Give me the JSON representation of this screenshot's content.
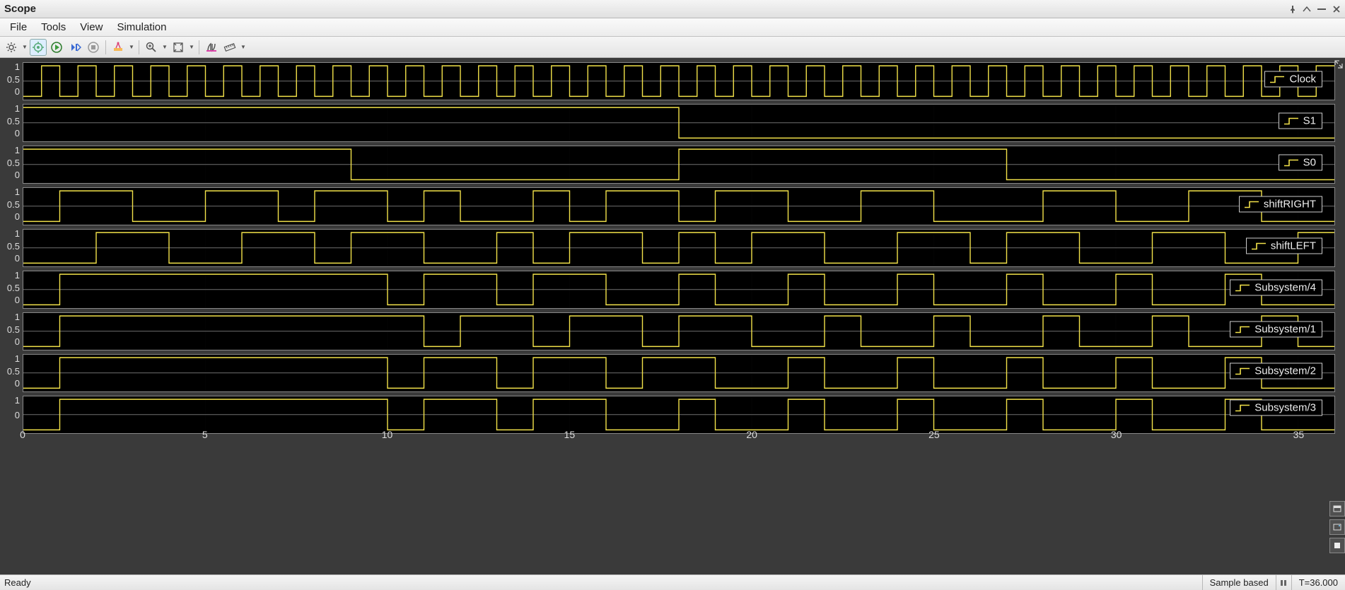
{
  "window": {
    "title": "Scope"
  },
  "menu": {
    "items": [
      "File",
      "Tools",
      "View",
      "Simulation"
    ]
  },
  "toolbar": {
    "buttons": [
      {
        "name": "config-button",
        "icon": "gear",
        "dd": true
      },
      {
        "name": "scope-params-button",
        "icon": "gear-scope",
        "active": true
      },
      {
        "name": "run-button",
        "icon": "play"
      },
      {
        "name": "step-button",
        "icon": "step"
      },
      {
        "name": "stop-button",
        "icon": "stop"
      },
      {
        "name": "highlight-button",
        "icon": "highlight",
        "dd": true,
        "sep_before": true
      },
      {
        "name": "zoom-button",
        "icon": "zoom",
        "dd": true,
        "sep_before": true
      },
      {
        "name": "autoscale-button",
        "icon": "autoscale",
        "dd": true
      },
      {
        "name": "cursors-button",
        "icon": "cursor",
        "sep_before": true
      },
      {
        "name": "measure-button",
        "icon": "ruler",
        "dd": true
      }
    ]
  },
  "plot": {
    "bg": "#000000",
    "area_bg": "#3a3a3a",
    "line_color": "#f2e24a",
    "grid_color": "#707070",
    "axis_color": "#888888",
    "text_color": "#dddddd",
    "x_min": 0,
    "x_max": 36,
    "x_ticks": [
      0,
      5,
      10,
      15,
      20,
      25,
      30,
      35
    ],
    "x_grid": [
      5,
      10,
      15,
      20,
      25,
      30,
      35
    ],
    "y_ticks": [
      "1",
      "0.5",
      "0"
    ],
    "subplots": [
      {
        "label": "Clock",
        "edges": [
          0,
          0.5,
          1,
          1.5,
          2,
          2.5,
          3,
          3.5,
          4,
          4.5,
          5,
          5.5,
          6,
          6.5,
          7,
          7.5,
          8,
          8.5,
          9,
          9.5,
          10,
          10.5,
          11,
          11.5,
          12,
          12.5,
          13,
          13.5,
          14,
          14.5,
          15,
          15.5,
          16,
          16.5,
          17,
          17.5,
          18,
          18.5,
          19,
          19.5,
          20,
          20.5,
          21,
          21.5,
          22,
          22.5,
          23,
          23.5,
          24,
          24.5,
          25,
          25.5,
          26,
          26.5,
          27,
          27.5,
          28,
          28.5,
          29,
          29.5,
          30,
          30.5,
          31,
          31.5,
          32,
          32.5,
          33,
          33.5,
          34,
          34.5,
          35,
          35.5,
          36
        ],
        "start": 0
      },
      {
        "label": "S1",
        "edges": [
          0,
          18,
          36
        ],
        "start": 1
      },
      {
        "label": "S0",
        "edges": [
          0,
          9,
          18,
          27,
          36
        ],
        "start": 1
      },
      {
        "label": "shiftRIGHT",
        "edges": [
          0,
          1,
          3,
          5,
          7,
          8,
          10,
          11,
          12,
          14,
          15,
          16,
          18,
          19,
          21,
          23,
          25,
          28,
          30,
          32,
          34,
          36
        ],
        "start": 0
      },
      {
        "label": "shiftLEFT",
        "edges": [
          0,
          2,
          4,
          6,
          8,
          9,
          11,
          13,
          14,
          15,
          17,
          18,
          19,
          20,
          22,
          24,
          26,
          27,
          29,
          31,
          33,
          35,
          36
        ],
        "start": 0
      },
      {
        "label": "Subsystem/4",
        "edges": [
          0,
          1,
          10,
          11,
          13,
          14,
          16,
          18,
          19,
          21,
          22,
          24,
          25,
          27,
          28,
          30,
          31,
          33,
          34,
          36
        ],
        "start": 0
      },
      {
        "label": "Subsystem/1",
        "edges": [
          0,
          1,
          11,
          12,
          14,
          15,
          17,
          18,
          20,
          22,
          23,
          25,
          26,
          28,
          29,
          31,
          32,
          34,
          35,
          36
        ],
        "start": 0
      },
      {
        "label": "Subsystem/2",
        "edges": [
          0,
          1,
          10,
          11,
          13,
          14,
          16,
          17,
          19,
          21,
          22,
          24,
          25,
          27,
          28,
          30,
          31,
          33,
          34,
          36
        ],
        "start": 0
      },
      {
        "label": "Subsystem/3",
        "edges": [
          0,
          1,
          10,
          11,
          13,
          14,
          16,
          18,
          19,
          21,
          22,
          24,
          25,
          27,
          28,
          30,
          31,
          33,
          34,
          36
        ],
        "start": 0
      }
    ]
  },
  "status": {
    "ready": "Ready",
    "mode": "Sample based",
    "time": "T=36.000"
  }
}
